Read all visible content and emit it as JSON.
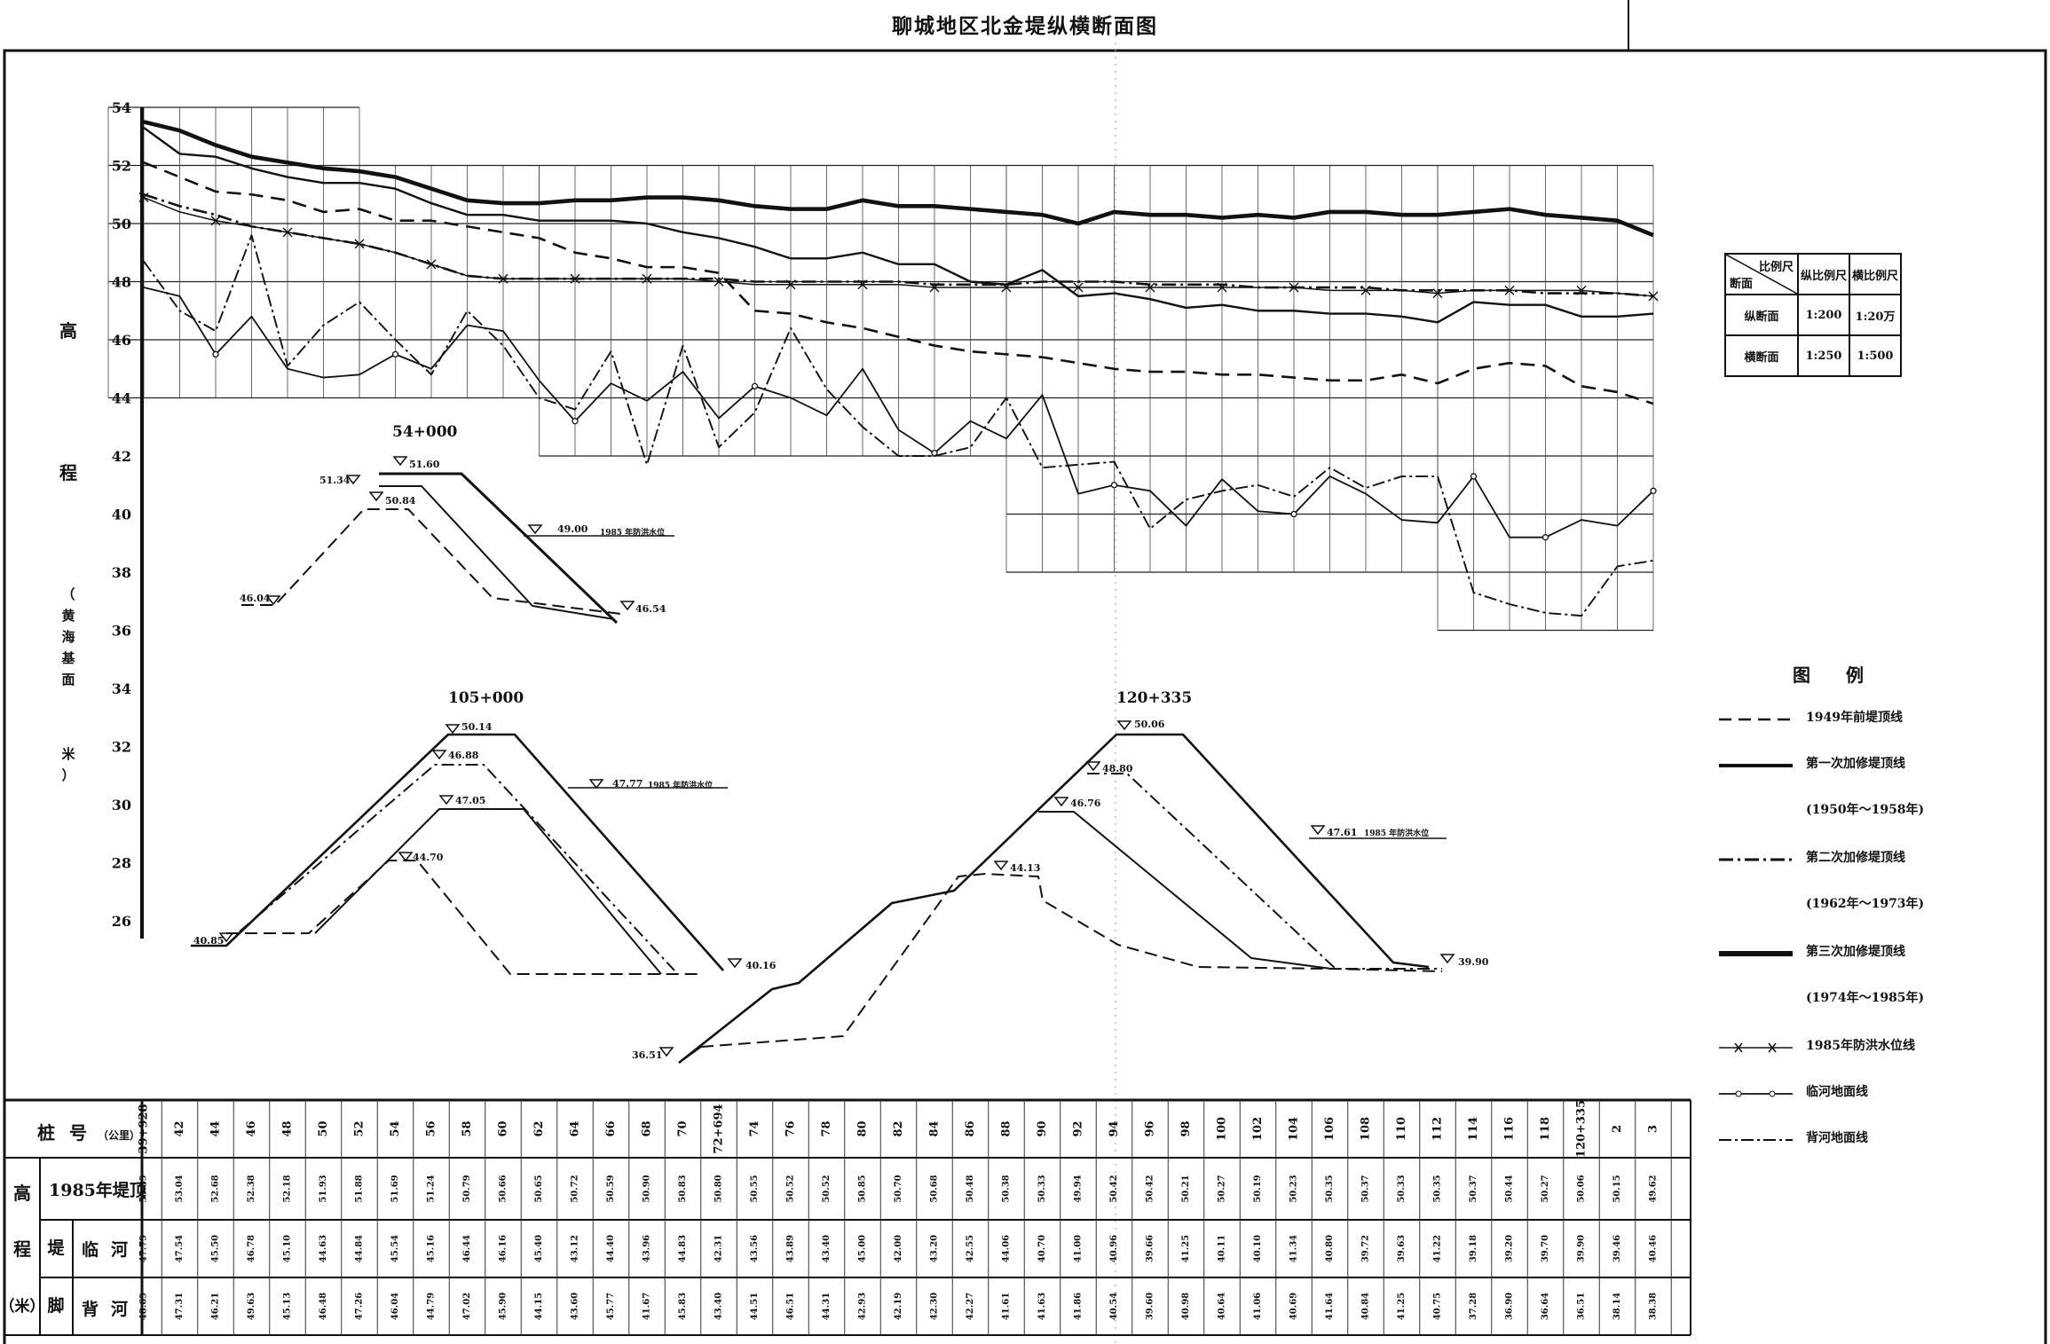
{
  "title": "聊城地区北金堤纵横断面图",
  "chart_data": {
    "type": "line",
    "ylabel_chars": [
      "高",
      "程",
      "（黄海基面",
      "米）"
    ],
    "y_ticks": [
      54,
      52,
      50,
      48,
      46,
      44,
      42,
      40,
      38,
      36,
      34,
      32,
      30,
      28,
      26
    ],
    "stations": [
      "39+928",
      "42",
      "44",
      "46",
      "48",
      "50",
      "52",
      "54",
      "56",
      "58",
      "60",
      "62",
      "64",
      "66",
      "68",
      "70",
      "72+694",
      "74",
      "76",
      "78",
      "80",
      "82",
      "84",
      "86",
      "88",
      "90",
      "92",
      "94",
      "96",
      "98",
      "100",
      "102",
      "104",
      "106",
      "108",
      "110",
      "112",
      "114",
      "116",
      "118",
      "120+335",
      "2",
      "3"
    ],
    "series": [
      {
        "name": "1949年前堤顶线",
        "style": "dashed",
        "values": [
          52.1,
          51.6,
          51.1,
          51.0,
          50.8,
          50.4,
          50.5,
          50.1,
          50.1,
          49.9,
          49.7,
          49.5,
          49.0,
          48.8,
          48.5,
          48.5,
          48.3,
          47.0,
          46.9,
          46.6,
          46.4,
          46.1,
          45.8,
          45.6,
          45.5,
          45.4,
          45.2,
          45.0,
          44.9,
          44.9,
          44.8,
          44.8,
          44.7,
          44.6,
          44.6,
          44.8,
          44.5,
          45.0,
          45.2,
          45.1,
          44.4,
          44.2,
          43.8
        ]
      },
      {
        "name": "第一次加修堤顶线",
        "style": "solid",
        "values": [
          53.3,
          52.4,
          52.3,
          51.9,
          51.6,
          51.4,
          51.4,
          51.2,
          50.7,
          50.3,
          50.3,
          50.1,
          50.1,
          50.1,
          50.0,
          49.7,
          49.5,
          49.2,
          48.8,
          48.8,
          49.0,
          48.6,
          48.6,
          48.0,
          47.9,
          48.4,
          47.5,
          47.6,
          47.4,
          47.1,
          47.2,
          47.0,
          47.0,
          46.9,
          46.9,
          46.8,
          46.6,
          47.3,
          47.2,
          47.2,
          46.8,
          46.8,
          46.9
        ]
      },
      {
        "name": "第二次加修堤顶线",
        "style": "dashdot",
        "values": [
          51.0,
          50.6,
          50.3,
          49.9,
          49.7,
          49.5,
          49.3,
          49.0,
          48.6,
          48.2,
          48.1,
          48.1,
          48.1,
          48.1,
          48.1,
          48.1,
          48.1,
          48.0,
          48.0,
          48.0,
          48.0,
          48.0,
          47.9,
          47.9,
          47.9,
          48.0,
          48.0,
          48.0,
          47.9,
          47.9,
          47.9,
          47.8,
          47.8,
          47.8,
          47.8,
          47.7,
          47.7,
          47.7,
          47.7,
          47.6,
          47.6,
          47.6,
          47.5
        ]
      },
      {
        "name": "第三次加修堤顶线",
        "style": "thick",
        "values": [
          53.5,
          53.2,
          52.7,
          52.3,
          52.1,
          51.9,
          51.8,
          51.6,
          51.2,
          50.8,
          50.7,
          50.7,
          50.8,
          50.8,
          50.9,
          50.9,
          50.8,
          50.6,
          50.5,
          50.5,
          50.8,
          50.6,
          50.6,
          50.5,
          50.4,
          50.3,
          50.0,
          50.4,
          50.3,
          50.3,
          50.2,
          50.3,
          50.2,
          50.4,
          50.4,
          50.3,
          50.3,
          50.4,
          50.5,
          50.3,
          50.2,
          50.1,
          49.6
        ]
      },
      {
        "name": "1985年防洪水位线",
        "style": "cross",
        "values": [
          50.9,
          50.4,
          50.1,
          49.9,
          49.7,
          49.5,
          49.3,
          49.0,
          48.6,
          48.2,
          48.1,
          48.1,
          48.1,
          48.1,
          48.1,
          48.1,
          48.0,
          47.9,
          47.9,
          47.9,
          47.9,
          47.9,
          47.8,
          47.8,
          47.8,
          47.8,
          47.8,
          47.8,
          47.8,
          47.8,
          47.8,
          47.8,
          47.8,
          47.7,
          47.7,
          47.7,
          47.6,
          47.7,
          47.7,
          47.7,
          47.7,
          47.6,
          47.5
        ]
      },
      {
        "name": "临河地面线",
        "style": "diamond",
        "values": [
          47.8,
          47.5,
          45.5,
          46.8,
          45.0,
          44.7,
          44.8,
          45.5,
          45.0,
          46.5,
          46.3,
          44.6,
          43.2,
          44.5,
          43.9,
          44.9,
          43.3,
          44.4,
          44.0,
          43.4,
          45.0,
          42.9,
          42.1,
          43.2,
          42.6,
          44.1,
          40.7,
          41.0,
          40.8,
          39.6,
          41.2,
          40.1,
          40.0,
          41.3,
          40.7,
          39.8,
          39.7,
          41.3,
          39.2,
          39.2,
          39.8,
          39.6,
          40.8
        ]
      },
      {
        "name": "背河地面线",
        "style": "dashdotthin",
        "values": [
          48.7,
          47.0,
          46.3,
          49.6,
          45.1,
          46.5,
          47.3,
          46.0,
          44.8,
          47.0,
          45.8,
          44.0,
          43.6,
          45.6,
          41.7,
          45.8,
          42.3,
          43.5,
          46.4,
          44.3,
          43.0,
          42.0,
          42.0,
          42.3,
          44.0,
          41.6,
          41.7,
          41.8,
          39.5,
          40.5,
          40.8,
          41.0,
          40.6,
          41.6,
          40.9,
          41.3,
          41.3,
          37.3,
          36.9,
          36.6,
          36.5,
          38.2,
          38.4
        ]
      }
    ],
    "grid_bands": [
      {
        "from": 0,
        "to": 6,
        "ymin": 44,
        "ymax": 54
      },
      {
        "from": 6,
        "to": 11,
        "ymin": 44,
        "ymax": 52
      },
      {
        "from": 11,
        "to": 24,
        "ymin": 42,
        "ymax": 52
      },
      {
        "from": 24,
        "to": 36,
        "ymin": 38,
        "ymax": 52
      },
      {
        "from": 36,
        "to": 42,
        "ymin": 36,
        "ymax": 52
      }
    ]
  },
  "scale_table": {
    "corner_top": "比例尺",
    "corner_bottom": "断面",
    "col1": "纵比例尺",
    "col2": "横比例尺",
    "rows": [
      {
        "label": "纵断面",
        "v": "1:200",
        "h": "1:20万"
      },
      {
        "label": "横断面",
        "v": "1:250",
        "h": "1:500"
      }
    ]
  },
  "legend": {
    "title": "图例",
    "items": [
      {
        "label": "1949年前堤顶线",
        "sub": ""
      },
      {
        "label": "第一次加修堤顶线",
        "sub": "(1950年～1958年)"
      },
      {
        "label": "第二次加修堤顶线",
        "sub": "(1962年～1973年)"
      },
      {
        "label": "第三次加修堤顶线",
        "sub": "(1974年～1985年)"
      },
      {
        "label": "1985年防洪水位线",
        "sub": ""
      },
      {
        "label": "临河地面线",
        "sub": ""
      },
      {
        "label": "背河地面线",
        "sub": ""
      }
    ]
  },
  "sections": [
    {
      "name": "54+000",
      "labels": [
        "51.34",
        "51.60",
        "50.84",
        "49.00",
        "1985 年防洪水位",
        "46.04",
        "46.54"
      ]
    },
    {
      "name": "105+000",
      "labels": [
        "50.14",
        "46.88",
        "47.77",
        "1985 年防洪水位",
        "47.05",
        "44.70",
        "40.85",
        "40.16"
      ]
    },
    {
      "name": "120+335",
      "labels": [
        "50.06",
        "48.80",
        "46.76",
        "47.61",
        "1985 年防洪水位",
        "44.13",
        "36.51",
        "39.90"
      ]
    }
  ],
  "table": {
    "row_station_label": "桩",
    "row_station_label2": "号",
    "row_station_unit": "（公里）",
    "row_elev_char1": "高",
    "row_elev_char2": "程",
    "row_elev_char3": "（米）",
    "row_top_label": "1985年堤顶",
    "row_foot_char1": "堤",
    "row_foot_char2": "脚",
    "row_near_label": "临河",
    "row_back_label": "背河",
    "crest": [
      "53.39",
      "53.04",
      "52.68",
      "52.38",
      "52.18",
      "51.93",
      "51.88",
      "51.69",
      "51.24",
      "50.79",
      "50.66",
      "50.65",
      "50.72",
      "50.59",
      "50.90",
      "50.83",
      "50.80",
      "50.55",
      "50.52",
      "50.52",
      "50.85",
      "50.70",
      "50.68",
      "50.48",
      "50.38",
      "50.33",
      "49.94",
      "50.42",
      "50.42",
      "50.21",
      "50.27",
      "50.19",
      "50.23",
      "50.35",
      "50.37",
      "50.33",
      "50.35",
      "50.37",
      "50.44",
      "50.27",
      "50.06",
      "50.15",
      "49.62"
    ],
    "near": [
      "47.79",
      "47.54",
      "45.50",
      "46.78",
      "45.10",
      "44.63",
      "44.84",
      "45.54",
      "45.16",
      "46.44",
      "46.16",
      "45.40",
      "43.12",
      "44.40",
      "43.96",
      "44.83",
      "42.31",
      "43.56",
      "43.89",
      "43.40",
      "45.00",
      "42.00",
      "43.20",
      "42.55",
      "44.06",
      "40.70",
      "41.00",
      "40.96",
      "39.66",
      "41.25",
      "40.11",
      "40.10",
      "41.34",
      "40.80",
      "39.72",
      "39.63",
      "41.22",
      "39.18",
      "39.20",
      "39.70",
      "39.90",
      "39.46",
      "40.46"
    ],
    "back": [
      "48.69",
      "47.31",
      "46.21",
      "49.63",
      "45.13",
      "46.48",
      "47.26",
      "46.04",
      "44.79",
      "47.02",
      "45.90",
      "44.15",
      "43.60",
      "45.77",
      "41.67",
      "45.83",
      "43.40",
      "44.51",
      "46.51",
      "44.31",
      "42.93",
      "42.19",
      "42.30",
      "42.27",
      "41.61",
      "41.63",
      "41.86",
      "40.54",
      "39.60",
      "40.98",
      "40.64",
      "41.06",
      "40.69",
      "41.64",
      "40.84",
      "41.25",
      "40.75",
      "37.28",
      "36.90",
      "36.64",
      "36.51",
      "38.14",
      "38.38"
    ]
  }
}
